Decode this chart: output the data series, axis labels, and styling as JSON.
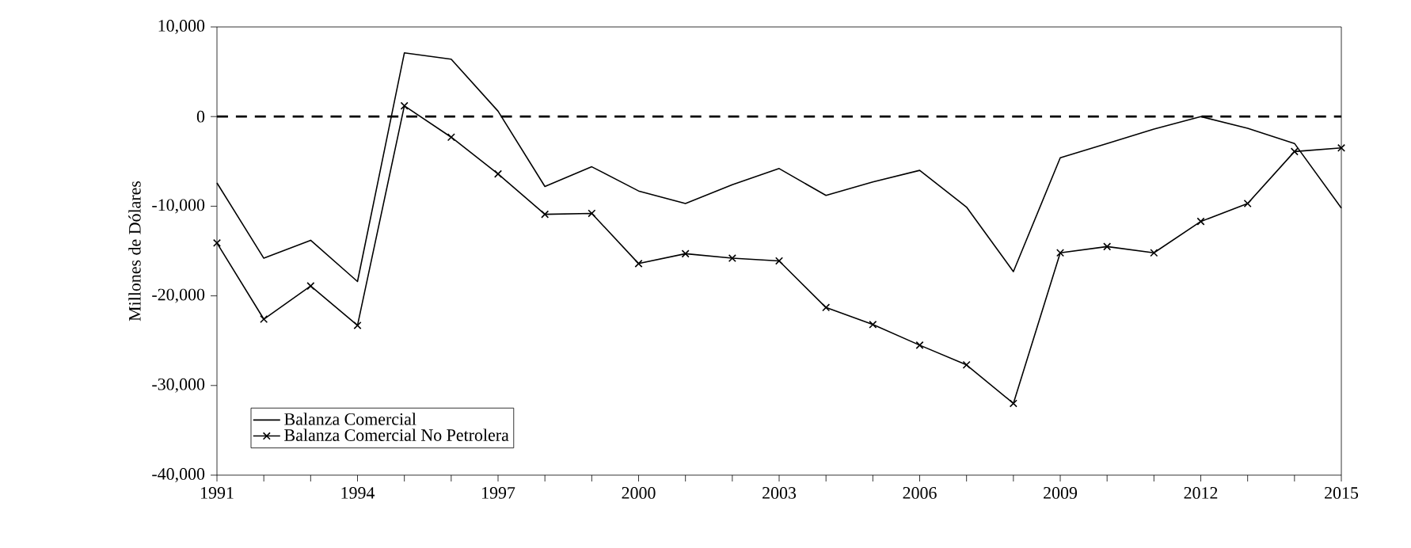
{
  "chart_data": {
    "type": "line",
    "ylabel": "Millones de Dólares",
    "x": [
      1991,
      1992,
      1993,
      1994,
      1995,
      1996,
      1997,
      1998,
      1999,
      2000,
      2001,
      2002,
      2003,
      2004,
      2005,
      2006,
      2007,
      2008,
      2009,
      2010,
      2011,
      2012,
      2013,
      2014,
      2015
    ],
    "series": [
      {
        "name": "Balanza Comercial",
        "color": "#000000",
        "marker": "none",
        "values": [
          -7400,
          -15800,
          -13800,
          -18400,
          7100,
          6400,
          600,
          -7800,
          -5600,
          -8300,
          -9700,
          -7600,
          -5800,
          -8800,
          -7300,
          -6000,
          -10100,
          -17300,
          -4600,
          -3000,
          -1400,
          0,
          -1300,
          -3000,
          -10200
        ]
      },
      {
        "name": "Balanza Comercial No Petrolera",
        "color": "#000000",
        "marker": "cross",
        "values": [
          -14100,
          -22600,
          -18900,
          -23300,
          1200,
          -2300,
          -6400,
          -10900,
          -10800,
          -16400,
          -15300,
          -15800,
          -16100,
          -21300,
          -23200,
          -25500,
          -27700,
          -32000,
          -15200,
          -14500,
          -15200,
          -11700,
          -9700,
          -3900,
          -3500
        ]
      }
    ],
    "xlim": [
      1991,
      2015
    ],
    "ylim": [
      -40000,
      10000
    ],
    "xticks": [
      1991,
      {
        "value": 1992,
        "label": null
      },
      {
        "value": 1993,
        "label": null
      },
      1994,
      {
        "value": 1995,
        "label": null
      },
      {
        "value": 1996,
        "label": null
      },
      1997,
      {
        "value": 1998,
        "label": null
      },
      {
        "value": 1999,
        "label": null
      },
      2000,
      {
        "value": 2001,
        "label": null
      },
      {
        "value": 2002,
        "label": null
      },
      2003,
      {
        "value": 2004,
        "label": null
      },
      {
        "value": 2005,
        "label": null
      },
      2006,
      {
        "value": 2007,
        "label": null
      },
      {
        "value": 2008,
        "label": null
      },
      2009,
      {
        "value": 2010,
        "label": null
      },
      {
        "value": 2011,
        "label": null
      },
      2012,
      {
        "value": 2013,
        "label": null
      },
      {
        "value": 2014,
        "label": null
      },
      2015
    ],
    "yticks": [
      {
        "value": -40000,
        "label": "-40,000"
      },
      {
        "value": -30000,
        "label": "-30,000"
      },
      {
        "value": -20000,
        "label": "-20,000"
      },
      {
        "value": -10000,
        "label": "-10,000"
      },
      0,
      {
        "value": 10000,
        "label": "10,000"
      }
    ],
    "ref_lines": [
      {
        "axis": "y",
        "value": 0,
        "label": null,
        "color": "#000000",
        "line_style": "dashed"
      }
    ],
    "grid": false,
    "legend": "bottom left",
    "line_style": "solid"
  }
}
